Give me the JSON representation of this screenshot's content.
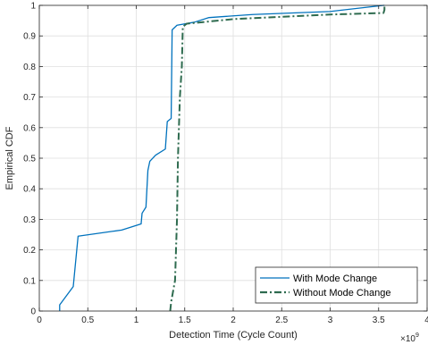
{
  "chart_data": {
    "type": "line",
    "xlabel": "Detection Time (Cycle Count)",
    "ylabel": "Empirical CDF",
    "xlim": [
      0,
      4
    ],
    "ylim": [
      0,
      1
    ],
    "x_exponent_label": "×10",
    "x_exponent_power": "9",
    "xticks": [
      0,
      0.5,
      1,
      1.5,
      2,
      2.5,
      3,
      3.5,
      4
    ],
    "xtick_labels": [
      "0",
      "0.5",
      "1",
      "1.5",
      "2",
      "2.5",
      "3",
      "3.5",
      "4"
    ],
    "yticks": [
      0,
      0.1,
      0.2,
      0.3,
      0.4,
      0.5,
      0.6,
      0.7,
      0.8,
      0.9,
      1
    ],
    "ytick_labels": [
      "0",
      "0.1",
      "0.2",
      "0.3",
      "0.4",
      "0.5",
      "0.6",
      "0.7",
      "0.8",
      "0.9",
      "1"
    ],
    "grid": true,
    "legend_position": "bottom-right",
    "series": [
      {
        "name": "With Mode Change",
        "color": "#0072BD",
        "style": "solid",
        "points": [
          [
            0.21,
            0.0
          ],
          [
            0.21,
            0.02
          ],
          [
            0.35,
            0.08
          ],
          [
            0.4,
            0.245
          ],
          [
            0.85,
            0.265
          ],
          [
            1.05,
            0.285
          ],
          [
            1.06,
            0.32
          ],
          [
            1.1,
            0.34
          ],
          [
            1.12,
            0.46
          ],
          [
            1.14,
            0.49
          ],
          [
            1.2,
            0.51
          ],
          [
            1.3,
            0.53
          ],
          [
            1.32,
            0.62
          ],
          [
            1.36,
            0.63
          ],
          [
            1.37,
            0.92
          ],
          [
            1.42,
            0.935
          ],
          [
            1.6,
            0.945
          ],
          [
            1.75,
            0.96
          ],
          [
            2.2,
            0.97
          ],
          [
            3.0,
            0.98
          ],
          [
            3.55,
            1.0
          ],
          [
            3.56,
            1.0
          ]
        ]
      },
      {
        "name": "Without Mode Change",
        "color": "#2E6B4F",
        "style": "dashdot",
        "points": [
          [
            1.35,
            0.0
          ],
          [
            1.36,
            0.03
          ],
          [
            1.4,
            0.1
          ],
          [
            1.42,
            0.3
          ],
          [
            1.43,
            0.5
          ],
          [
            1.45,
            0.7
          ],
          [
            1.47,
            0.8
          ],
          [
            1.48,
            0.93
          ],
          [
            1.52,
            0.94
          ],
          [
            2.0,
            0.955
          ],
          [
            3.0,
            0.97
          ],
          [
            3.55,
            0.975
          ],
          [
            3.56,
            0.985
          ],
          [
            3.56,
            1.0
          ]
        ]
      }
    ]
  }
}
